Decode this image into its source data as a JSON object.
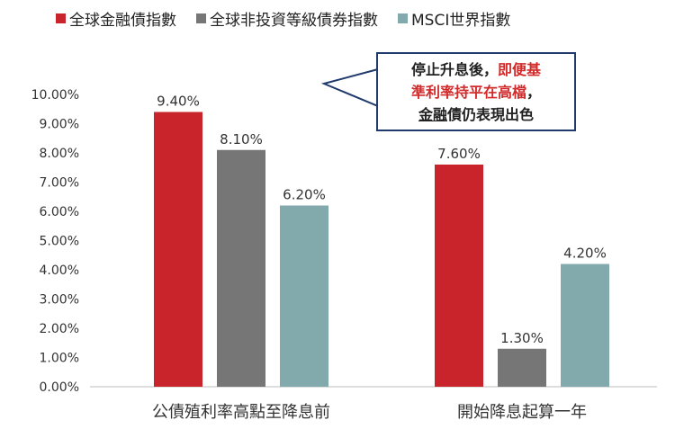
{
  "chart_data": {
    "type": "bar",
    "categories": [
      "公債殖利率高點至降息前",
      "開始降息起算一年"
    ],
    "series": [
      {
        "name": "全球金融債指數",
        "values": [
          9.4,
          7.6
        ],
        "labels": [
          "9.40%",
          "7.60%"
        ],
        "color": "#c9242b"
      },
      {
        "name": "全球非投資等級債券指數",
        "values": [
          8.1,
          1.3
        ],
        "labels": [
          "8.10%",
          "1.30%"
        ],
        "color": "#767676"
      },
      {
        "name": "MSCI世界指數",
        "values": [
          6.2,
          4.2
        ],
        "labels": [
          "6.20%",
          "4.20%"
        ],
        "color": "#82aaac"
      }
    ],
    "yticks": [
      "0.00%",
      "1.00%",
      "2.00%",
      "3.00%",
      "4.00%",
      "5.00%",
      "6.00%",
      "7.00%",
      "8.00%",
      "9.00%",
      "10.00%"
    ],
    "ylim": [
      0,
      10
    ],
    "grid": false,
    "legend_position": "top-left"
  },
  "callout": {
    "line1_prefix": "停止升息後，",
    "line1_red": "即便基",
    "line2_red": "準利率持平在高檔",
    "line2_suffix": "，",
    "line3_underlined": "金融",
    "line3_suffix": "債仍表現出色",
    "border_color": "#1f3a6b"
  }
}
